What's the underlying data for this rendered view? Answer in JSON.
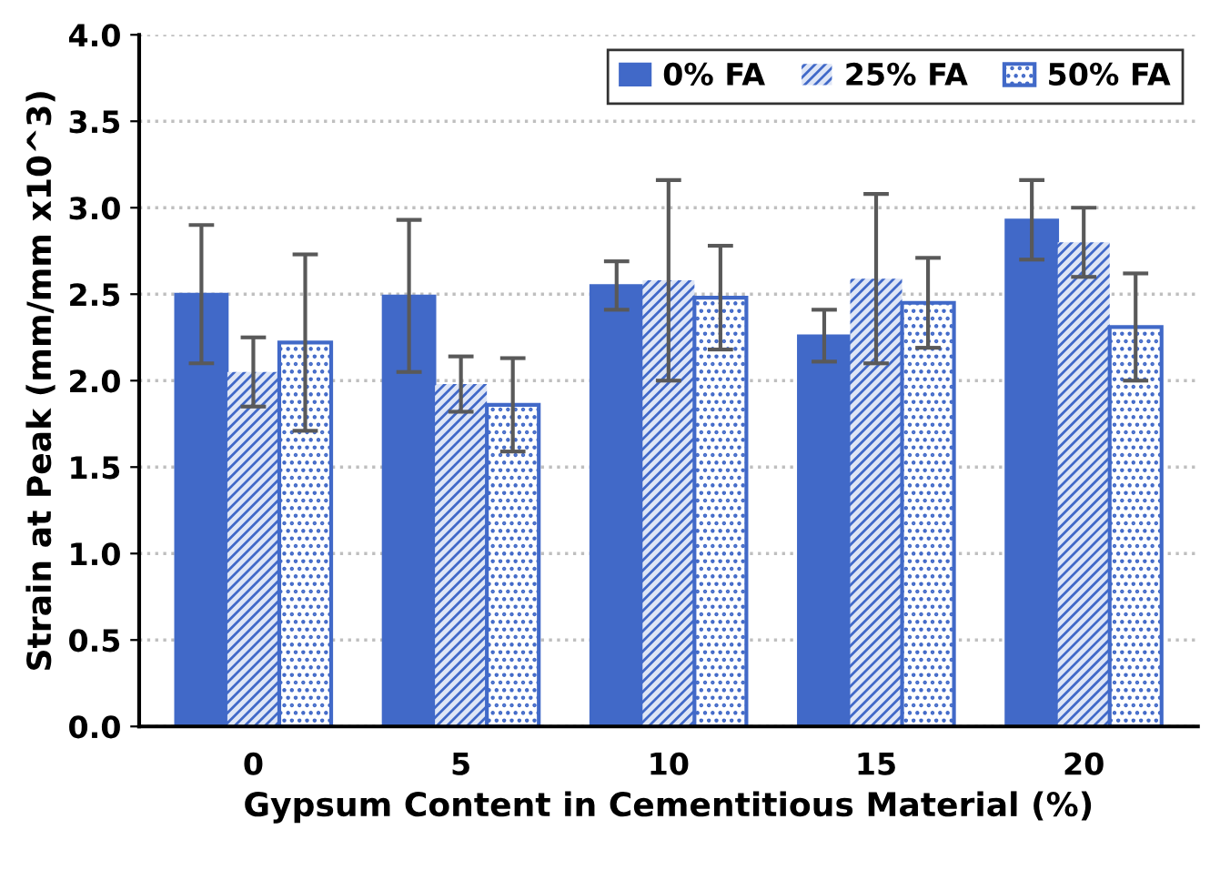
{
  "chart_data": {
    "type": "bar",
    "xlabel": "Gypsum Content in Cementitious Material (%)",
    "ylabel": "Strain at Peak (mm/mm x10^3)",
    "categories": [
      "0",
      "5",
      "10",
      "15",
      "20"
    ],
    "series": [
      {
        "name": "0% FA",
        "color": "#4169c8",
        "values": [
          2.5,
          2.49,
          2.55,
          2.26,
          2.93
        ],
        "errors": [
          0.4,
          0.44,
          0.14,
          0.15,
          0.23
        ]
      },
      {
        "name": "25% FA",
        "color": "#4169c8",
        "values": [
          2.05,
          1.98,
          2.58,
          2.59,
          2.8
        ],
        "errors": [
          0.2,
          0.16,
          0.58,
          0.49,
          0.2
        ]
      },
      {
        "name": "50% FA",
        "color": "#4169c8",
        "values": [
          2.22,
          1.86,
          2.48,
          2.45,
          2.31
        ],
        "errors": [
          0.51,
          0.27,
          0.3,
          0.26,
          0.31
        ]
      }
    ],
    "ylim": [
      0,
      4.0
    ],
    "yticks": [
      {
        "value": 0,
        "label": "0.0"
      },
      {
        "value": 0.5,
        "label": "0.5"
      },
      {
        "value": 1,
        "label": "1.0"
      },
      {
        "value": 1.5,
        "label": "1.5"
      },
      {
        "value": 2,
        "label": "2.0"
      },
      {
        "value": 2.5,
        "label": "2.5"
      },
      {
        "value": 3,
        "label": "3.0"
      },
      {
        "value": 3.5,
        "label": "3.5"
      },
      {
        "value": 4,
        "label": "4.0"
      }
    ],
    "grid": "y",
    "legend": "top right"
  }
}
